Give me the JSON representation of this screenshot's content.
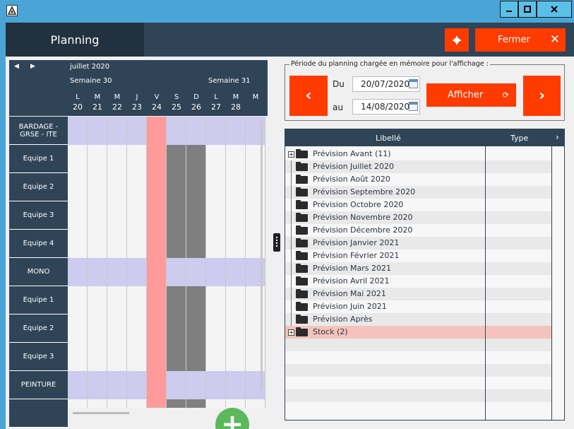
{
  "window": {
    "minimize": "▁",
    "maximize": "☐",
    "close": "✕"
  },
  "header": {
    "tab": "Planning",
    "close_label": "Fermer",
    "close_icon": "✕",
    "settings_icon": "gear-icon"
  },
  "planning": {
    "month": "juillet 2020",
    "weeks": [
      {
        "label": "Semaine 30"
      },
      {
        "label": "Semaine 31"
      }
    ],
    "days": [
      {
        "letter": "L",
        "num": "20"
      },
      {
        "letter": "M",
        "num": "21"
      },
      {
        "letter": "M",
        "num": "22"
      },
      {
        "letter": "J",
        "num": "23"
      },
      {
        "letter": "V",
        "num": "24"
      },
      {
        "letter": "S",
        "num": "25"
      },
      {
        "letter": "D",
        "num": "26"
      },
      {
        "letter": "L",
        "num": "27"
      },
      {
        "letter": "M",
        "num": "28"
      },
      {
        "letter": "M",
        "num": ""
      }
    ],
    "rows": [
      {
        "label": "BARDAGE - GRSE - ITE",
        "kind": "group"
      },
      {
        "label": "Equipe 1",
        "kind": "team"
      },
      {
        "label": "Equipe 2",
        "kind": "team"
      },
      {
        "label": "Equipe 3",
        "kind": "team"
      },
      {
        "label": "Equipe 4",
        "kind": "team"
      },
      {
        "label": "MONO",
        "kind": "group"
      },
      {
        "label": "Equipe 1",
        "kind": "team"
      },
      {
        "label": "Equipe 2",
        "kind": "team"
      },
      {
        "label": "Equipe 3",
        "kind": "team"
      },
      {
        "label": "PEINTURE",
        "kind": "group"
      },
      {
        "label": "",
        "kind": "team"
      }
    ],
    "highlight_day": "24",
    "add_button": "+"
  },
  "period": {
    "legend": "Période du planning chargée en mémoire pour l'affichage :",
    "from_label": "Du",
    "from_value": "20/07/2020",
    "to_label": "au",
    "to_value": "14/08/2020",
    "show_label": "Afficher",
    "show_icon": "⟳",
    "prev_icon": "‹",
    "next_icon": "›"
  },
  "table": {
    "col_label": "Libellé",
    "col_type": "Type",
    "more_icon": "›",
    "rows": [
      {
        "label": "Prévision Avant (11)",
        "expandable": true
      },
      {
        "label": "Prévision Juillet 2020"
      },
      {
        "label": "Prévision Août 2020"
      },
      {
        "label": "Prévision Septembre 2020"
      },
      {
        "label": "Prévision Octobre 2020"
      },
      {
        "label": "Prévision Novembre 2020"
      },
      {
        "label": "Prévision Décembre 2020"
      },
      {
        "label": "Prévision Janvier 2021"
      },
      {
        "label": "Prévision Février 2021"
      },
      {
        "label": "Prévision Mars 2021"
      },
      {
        "label": "Prévision Avril 2021"
      },
      {
        "label": "Prévision Mai 2021"
      },
      {
        "label": "Prévision Juin 2021"
      },
      {
        "label": "Prévision Après"
      },
      {
        "label": "Stock (2)",
        "expandable": true,
        "selected": true
      }
    ]
  }
}
